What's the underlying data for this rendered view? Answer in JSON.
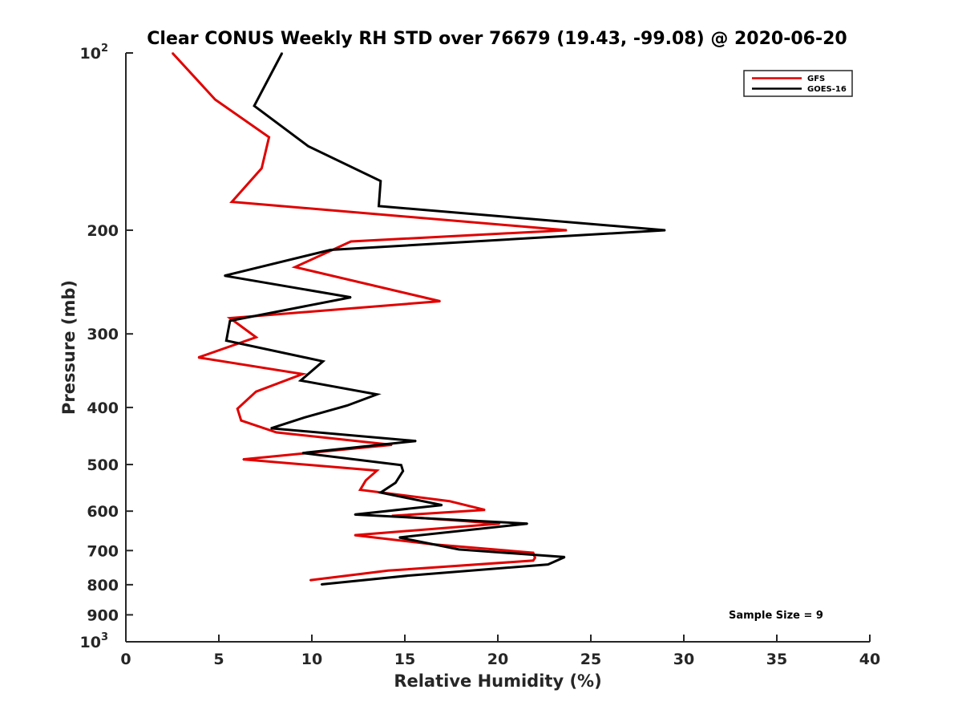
{
  "chart_data": {
    "type": "line",
    "title": "Clear CONUS Weekly RH STD over 76679 (19.43, -99.08) @ 2020-06-20",
    "xlabel": "Relative Humidity (%)",
    "ylabel": "Pressure (mb)",
    "xlim": [
      0,
      40
    ],
    "ylim": [
      100,
      1000
    ],
    "y_scale": "log",
    "y_reversed": true,
    "grid": false,
    "legend_position": "top-right",
    "x_ticks": [
      {
        "value": 0,
        "label": "0"
      },
      {
        "value": 5,
        "label": "5"
      },
      {
        "value": 10,
        "label": "10"
      },
      {
        "value": 15,
        "label": "15"
      },
      {
        "value": 20,
        "label": "20"
      },
      {
        "value": 25,
        "label": "25"
      },
      {
        "value": 30,
        "label": "30"
      },
      {
        "value": 35,
        "label": "35"
      },
      {
        "value": 40,
        "label": "40"
      }
    ],
    "y_ticks": [
      {
        "value": 100,
        "label": "10",
        "sup": "2"
      },
      {
        "value": 200,
        "label": "200"
      },
      {
        "value": 300,
        "label": "300"
      },
      {
        "value": 400,
        "label": "400"
      },
      {
        "value": 500,
        "label": "500"
      },
      {
        "value": 600,
        "label": "600"
      },
      {
        "value": 700,
        "label": "700"
      },
      {
        "value": 800,
        "label": "800"
      },
      {
        "value": 900,
        "label": "900"
      },
      {
        "value": 1000,
        "label": "10",
        "sup": "3"
      }
    ],
    "annotation": "Sample Size = 9",
    "series": [
      {
        "name": "GFS",
        "color": "#e00000",
        "points": [
          [
            2.5,
            100
          ],
          [
            4.8,
            120
          ],
          [
            7.7,
            139
          ],
          [
            7.3,
            157
          ],
          [
            5.7,
            179
          ],
          [
            23.7,
            200
          ],
          [
            12.1,
            209
          ],
          [
            9.1,
            231
          ],
          [
            16.9,
            264
          ],
          [
            5.6,
            282
          ],
          [
            7.0,
            304
          ],
          [
            3.9,
            329
          ],
          [
            9.5,
            351
          ],
          [
            7.0,
            376
          ],
          [
            6.0,
            402
          ],
          [
            6.2,
            421
          ],
          [
            8.1,
            441
          ],
          [
            14.3,
            463
          ],
          [
            6.3,
            490
          ],
          [
            13.5,
            512
          ],
          [
            12.9,
            532
          ],
          [
            12.6,
            552
          ],
          [
            17.4,
            577
          ],
          [
            19.3,
            597
          ],
          [
            14.3,
            611
          ],
          [
            20.1,
            630
          ],
          [
            12.3,
            659
          ],
          [
            16.5,
            683
          ],
          [
            21.9,
            706
          ],
          [
            22.0,
            720
          ],
          [
            21.9,
            728
          ],
          [
            14.1,
            757
          ],
          [
            9.9,
            786
          ]
        ]
      },
      {
        "name": "GOES-16",
        "color": "#000000",
        "points": [
          [
            8.4,
            100
          ],
          [
            6.9,
            123
          ],
          [
            9.8,
            144
          ],
          [
            13.7,
            165
          ],
          [
            13.6,
            182
          ],
          [
            29.0,
            200
          ],
          [
            11.0,
            216
          ],
          [
            5.3,
            239
          ],
          [
            12.1,
            260
          ],
          [
            5.6,
            285
          ],
          [
            5.4,
            308
          ],
          [
            10.6,
            334
          ],
          [
            9.4,
            360
          ],
          [
            13.5,
            380
          ],
          [
            11.9,
            397
          ],
          [
            9.6,
            416
          ],
          [
            7.8,
            434
          ],
          [
            15.6,
            456
          ],
          [
            9.5,
            478
          ],
          [
            14.8,
            501
          ],
          [
            14.9,
            513
          ],
          [
            14.5,
            537
          ],
          [
            13.7,
            558
          ],
          [
            17.0,
            586
          ],
          [
            12.3,
            608
          ],
          [
            21.6,
            630
          ],
          [
            14.7,
            665
          ],
          [
            17.9,
            697
          ],
          [
            23.6,
            718
          ],
          [
            22.7,
            739
          ],
          [
            15.2,
            772
          ],
          [
            10.5,
            799
          ]
        ]
      }
    ]
  }
}
